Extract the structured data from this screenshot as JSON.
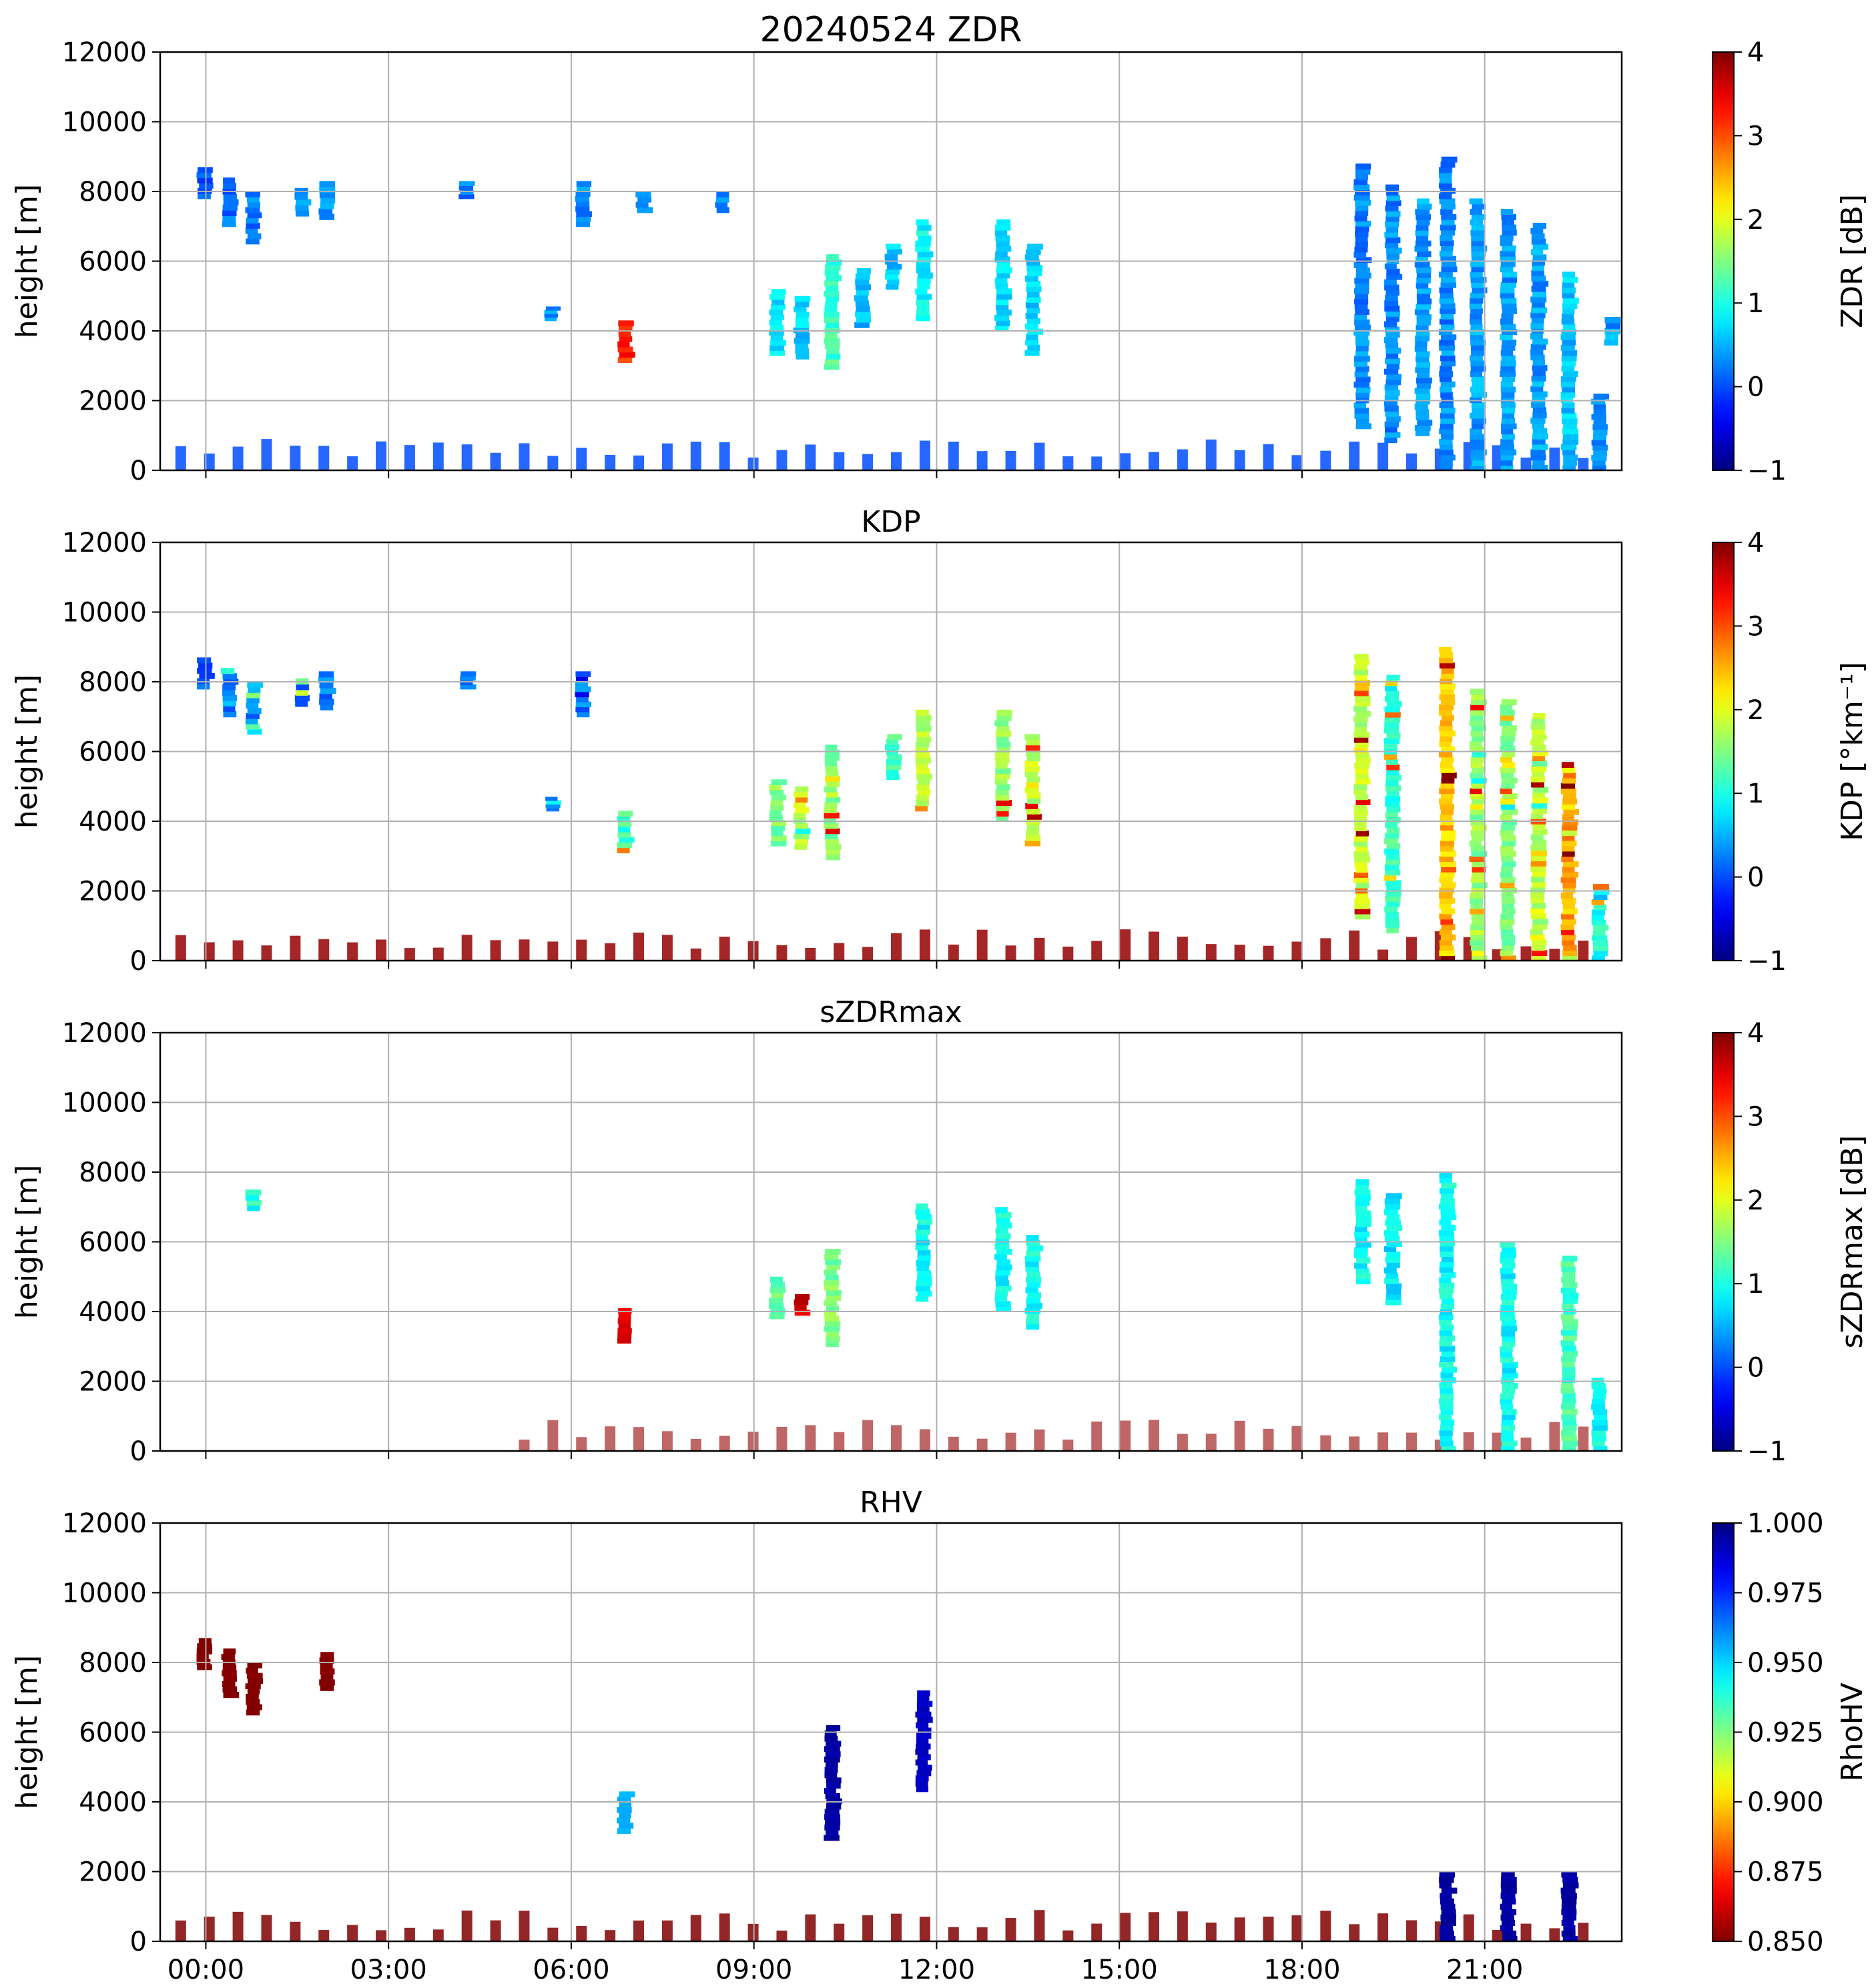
{
  "figure": {
    "xticks": [
      "00:00",
      "03:00",
      "06:00",
      "09:00",
      "12:00",
      "15:00",
      "18:00",
      "21:00"
    ]
  },
  "chart_data": [
    {
      "type": "heatmap",
      "title": "20240524 ZDR",
      "ylabel": "height [m]",
      "ylim": [
        0,
        12000
      ],
      "yticks": [
        "0",
        "2000",
        "4000",
        "6000",
        "8000",
        "10000",
        "12000"
      ],
      "xlim_hours": [
        -0.75,
        23.25
      ],
      "grid": true,
      "colorbar": {
        "label": "ZDR [dB]",
        "colormap": "jet",
        "range": [
          -1,
          4
        ],
        "ticks": [
          "−1",
          "0",
          "1",
          "2",
          "3",
          "4"
        ]
      },
      "echoes": [
        {
          "t": 0.0,
          "h": [
            7800,
            8700
          ],
          "v": 0.1
        },
        {
          "t": 0.4,
          "h": [
            7000,
            8400
          ],
          "v": 0.2
        },
        {
          "t": 0.8,
          "h": [
            6500,
            8000
          ],
          "v": 0.2
        },
        {
          "t": 1.6,
          "h": [
            7300,
            8100
          ],
          "v": 0.3
        },
        {
          "t": 2.0,
          "h": [
            7200,
            8300
          ],
          "v": 0.3
        },
        {
          "t": 4.3,
          "h": [
            7800,
            8300
          ],
          "v": 0.2
        },
        {
          "t": 5.7,
          "h": [
            4300,
            4700
          ],
          "v": 0.3
        },
        {
          "t": 6.2,
          "h": [
            7000,
            8300
          ],
          "v": 0.3
        },
        {
          "t": 6.9,
          "h": [
            3100,
            4300
          ],
          "v": 3.2
        },
        {
          "t": 7.2,
          "h": [
            7400,
            8000
          ],
          "v": 0.2
        },
        {
          "t": 8.5,
          "h": [
            7400,
            8000
          ],
          "v": 0.3
        },
        {
          "t": 9.4,
          "h": [
            3300,
            5200
          ],
          "v": 0.8
        },
        {
          "t": 9.8,
          "h": [
            3200,
            5000
          ],
          "v": 0.6
        },
        {
          "t": 10.3,
          "h": [
            2900,
            6200
          ],
          "v": 1.2
        },
        {
          "t": 10.8,
          "h": [
            4100,
            5800
          ],
          "v": 0.5
        },
        {
          "t": 11.3,
          "h": [
            5200,
            6500
          ],
          "v": 0.6
        },
        {
          "t": 11.8,
          "h": [
            4300,
            7200
          ],
          "v": 0.9
        },
        {
          "t": 13.1,
          "h": [
            4000,
            7200
          ],
          "v": 0.7
        },
        {
          "t": 13.6,
          "h": [
            3300,
            6500
          ],
          "v": 0.6
        },
        {
          "t": 19.0,
          "h": [
            1200,
            8800
          ],
          "v": 0.3
        },
        {
          "t": 19.5,
          "h": [
            800,
            8200
          ],
          "v": 0.3
        },
        {
          "t": 20.0,
          "h": [
            1000,
            7800
          ],
          "v": 0.4
        },
        {
          "t": 20.4,
          "h": [
            0,
            9000
          ],
          "v": 0.3
        },
        {
          "t": 20.9,
          "h": [
            0,
            7800
          ],
          "v": 0.4
        },
        {
          "t": 21.4,
          "h": [
            0,
            7500
          ],
          "v": 0.4
        },
        {
          "t": 21.9,
          "h": [
            0,
            7100
          ],
          "v": 0.4
        },
        {
          "t": 22.4,
          "h": [
            0,
            5700
          ],
          "v": 0.6
        },
        {
          "t": 22.9,
          "h": [
            0,
            2200
          ],
          "v": 0.3
        },
        {
          "t": 23.1,
          "h": [
            3600,
            4400
          ],
          "v": 0.4
        }
      ]
    },
    {
      "type": "heatmap",
      "title": "KDP",
      "ylabel": "height [m]",
      "ylim": [
        0,
        12000
      ],
      "yticks": [
        "0",
        "2000",
        "4000",
        "6000",
        "8000",
        "10000",
        "12000"
      ],
      "xlim_hours": [
        -0.75,
        23.25
      ],
      "grid": true,
      "colorbar": {
        "label": "KDP [°km⁻¹]",
        "colormap": "jet",
        "range": [
          -1,
          4
        ],
        "ticks": [
          "−1",
          "0",
          "1",
          "2",
          "3",
          "4"
        ]
      },
      "echoes": [
        {
          "t": 0.0,
          "h": [
            7800,
            8700
          ],
          "v": 0.1
        },
        {
          "t": 0.4,
          "h": [
            7000,
            8400
          ],
          "v": 0.2
        },
        {
          "t": 0.8,
          "h": [
            6500,
            8000
          ],
          "v": 0.6
        },
        {
          "t": 1.6,
          "h": [
            7300,
            8100
          ],
          "v": 0.2
        },
        {
          "t": 2.0,
          "h": [
            7200,
            8300
          ],
          "v": 0.2
        },
        {
          "t": 4.3,
          "h": [
            7800,
            8300
          ],
          "v": 0.1
        },
        {
          "t": 5.7,
          "h": [
            4300,
            4700
          ],
          "v": 0.2
        },
        {
          "t": 6.2,
          "h": [
            7000,
            8300
          ],
          "v": 0.2
        },
        {
          "t": 6.9,
          "h": [
            3100,
            4300
          ],
          "v": 1.2
        },
        {
          "t": 9.4,
          "h": [
            3300,
            5200
          ],
          "v": 1.5
        },
        {
          "t": 9.8,
          "h": [
            3200,
            5000
          ],
          "v": 1.8
        },
        {
          "t": 10.3,
          "h": [
            2900,
            6200
          ],
          "v": 1.5
        },
        {
          "t": 11.3,
          "h": [
            5200,
            6500
          ],
          "v": 1.2
        },
        {
          "t": 11.8,
          "h": [
            4300,
            7200
          ],
          "v": 1.8
        },
        {
          "t": 13.1,
          "h": [
            4000,
            7200
          ],
          "v": 1.6
        },
        {
          "t": 13.6,
          "h": [
            3300,
            6500
          ],
          "v": 1.8
        },
        {
          "t": 19.0,
          "h": [
            1200,
            8800
          ],
          "v": 1.8
        },
        {
          "t": 19.5,
          "h": [
            800,
            8200
          ],
          "v": 1.2
        },
        {
          "t": 20.4,
          "h": [
            0,
            9000
          ],
          "v": 2.4
        },
        {
          "t": 20.9,
          "h": [
            0,
            7800
          ],
          "v": 1.6
        },
        {
          "t": 21.4,
          "h": [
            0,
            7500
          ],
          "v": 1.5
        },
        {
          "t": 21.9,
          "h": [
            0,
            7100
          ],
          "v": 1.8
        },
        {
          "t": 22.4,
          "h": [
            0,
            5700
          ],
          "v": 2.6
        },
        {
          "t": 22.9,
          "h": [
            0,
            2200
          ],
          "v": 1.0
        }
      ]
    },
    {
      "type": "heatmap",
      "title": "sZDRmax",
      "ylabel": "height [m]",
      "ylim": [
        0,
        12000
      ],
      "yticks": [
        "0",
        "2000",
        "4000",
        "6000",
        "8000",
        "10000",
        "12000"
      ],
      "xlim_hours": [
        -0.75,
        23.25
      ],
      "grid": true,
      "colorbar": {
        "label": "sZDRmax [dB]",
        "colormap": "jet",
        "range": [
          -1,
          4
        ],
        "ticks": [
          "−1",
          "0",
          "1",
          "2",
          "3",
          "4"
        ]
      },
      "echoes": [
        {
          "t": 0.8,
          "h": [
            6900,
            7500
          ],
          "v": 1.0
        },
        {
          "t": 6.9,
          "h": [
            3100,
            4100
          ],
          "v": 3.6
        },
        {
          "t": 9.4,
          "h": [
            3800,
            5000
          ],
          "v": 1.4
        },
        {
          "t": 9.8,
          "h": [
            3900,
            4500
          ],
          "v": 3.6
        },
        {
          "t": 10.3,
          "h": [
            3000,
            5800
          ],
          "v": 1.5
        },
        {
          "t": 11.8,
          "h": [
            4300,
            7100
          ],
          "v": 0.9
        },
        {
          "t": 13.1,
          "h": [
            4000,
            7000
          ],
          "v": 0.9
        },
        {
          "t": 13.6,
          "h": [
            3500,
            6200
          ],
          "v": 0.9
        },
        {
          "t": 19.0,
          "h": [
            4800,
            7800
          ],
          "v": 0.9
        },
        {
          "t": 19.5,
          "h": [
            4200,
            7400
          ],
          "v": 0.8
        },
        {
          "t": 20.4,
          "h": [
            0,
            8000
          ],
          "v": 0.9
        },
        {
          "t": 21.4,
          "h": [
            0,
            6000
          ],
          "v": 0.9
        },
        {
          "t": 22.4,
          "h": [
            0,
            5600
          ],
          "v": 1.2
        },
        {
          "t": 22.9,
          "h": [
            0,
            2100
          ],
          "v": 0.9
        }
      ]
    },
    {
      "type": "heatmap",
      "title": "RHV",
      "ylabel": "height [m]",
      "ylim": [
        0,
        12000
      ],
      "yticks": [
        "0",
        "2000",
        "4000",
        "6000",
        "8000",
        "10000",
        "12000"
      ],
      "xlim_hours": [
        -0.75,
        23.25
      ],
      "grid": true,
      "colorbar": {
        "label": "RhoHV",
        "colormap": "jet_r",
        "range": [
          0.85,
          1.0
        ],
        "ticks": [
          "0.850",
          "0.875",
          "0.900",
          "0.925",
          "0.950",
          "0.975",
          "1.000"
        ]
      },
      "echoes": [
        {
          "t": 0.0,
          "h": [
            7800,
            8700
          ],
          "v": 0.85
        },
        {
          "t": 0.4,
          "h": [
            7000,
            8400
          ],
          "v": 0.85
        },
        {
          "t": 0.8,
          "h": [
            6500,
            8000
          ],
          "v": 0.85
        },
        {
          "t": 2.0,
          "h": [
            7200,
            8300
          ],
          "v": 0.85
        },
        {
          "t": 6.9,
          "h": [
            3100,
            4300
          ],
          "v": 0.955
        },
        {
          "t": 10.3,
          "h": [
            2900,
            6200
          ],
          "v": 0.995
        },
        {
          "t": 11.8,
          "h": [
            4300,
            7200
          ],
          "v": 0.99
        },
        {
          "t": 20.4,
          "h": [
            0,
            2000
          ],
          "v": 0.995
        },
        {
          "t": 21.4,
          "h": [
            0,
            2000
          ],
          "v": 0.995
        },
        {
          "t": 22.4,
          "h": [
            0,
            2000
          ],
          "v": 0.995
        }
      ]
    }
  ]
}
